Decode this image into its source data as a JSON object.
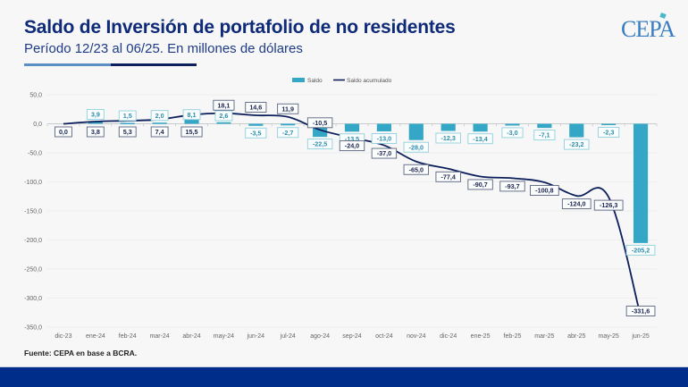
{
  "header": {
    "title": "Saldo de Inversión de portafolio de no residentes",
    "subtitle": "Período 12/23 al 06/25. En millones de dólares",
    "logo": "CEPA"
  },
  "footer": {
    "source": "Fuente: CEPA en base a BCRA."
  },
  "colors": {
    "bar": "#35a7c6",
    "line": "#0d1f5c",
    "bar_label_border": "#8fd0de",
    "line_label_border": "#5a6480",
    "bar_label_text": "#2b8fae",
    "line_label_text": "#1b2550"
  },
  "chart_data": {
    "type": "bar",
    "title": "Saldo de Inversión de portafolio de no residentes",
    "subtitle": "Período 12/23 al 06/25. En millones de dólares",
    "xlabel": "",
    "ylabel": "",
    "ylim": [
      -350,
      50
    ],
    "yticks": [
      50,
      0,
      -50,
      -100,
      -150,
      -200,
      -250,
      -300,
      -350
    ],
    "ytick_labels": [
      "50,0",
      "0,0",
      "-50,0",
      "-100,0",
      "-150,0",
      "-200,0",
      "-250,0",
      "-300,0",
      "-350,0"
    ],
    "grid": true,
    "legend": "top-center",
    "categories": [
      "dic-23",
      "ene-24",
      "feb-24",
      "mar-24",
      "abr-24",
      "may-24",
      "jun-24",
      "jul-24",
      "ago-24",
      "sep-24",
      "oct-24",
      "nov-24",
      "dic-24",
      "ene-25",
      "feb-25",
      "mar-25",
      "abr-25",
      "may-25",
      "jun-25"
    ],
    "series": [
      {
        "name": "Saldo",
        "type": "bar",
        "values": [
          0.0,
          3.9,
          1.5,
          2.0,
          8.1,
          2.6,
          -3.5,
          -2.7,
          -22.5,
          -13.5,
          -13.0,
          -28.0,
          -12.3,
          -13.4,
          -3.0,
          -7.1,
          -23.2,
          -2.3,
          -205.2
        ],
        "labels": [
          "",
          "3,9",
          "1,5",
          "2,0",
          "8,1",
          "2,6",
          "-3,5",
          "-2,7",
          "-22,5",
          "-13,5",
          "-13,0",
          "-28,0",
          "-12,3",
          "-13,4",
          "-3,0",
          "-7,1",
          "-23,2",
          "-2,3",
          "-205,2"
        ]
      },
      {
        "name": "Saldo acumulado",
        "type": "line",
        "values": [
          0.0,
          3.8,
          5.3,
          7.4,
          15.5,
          18.1,
          14.6,
          11.9,
          -10.5,
          -24.0,
          -37.0,
          -65.0,
          -77.4,
          -90.7,
          -93.7,
          -100.8,
          -124.0,
          -126.3,
          -331.6
        ],
        "labels": [
          "0,0",
          "3,8",
          "5,3",
          "7,4",
          "15,5",
          "18,1",
          "14,6",
          "11,9",
          "-10,5",
          "-24,0",
          "-37,0",
          "-65,0",
          "-77,4",
          "-90,7",
          "-93,7",
          "-100,8",
          "-124,0",
          "-126,3",
          "-331,6"
        ]
      }
    ]
  }
}
